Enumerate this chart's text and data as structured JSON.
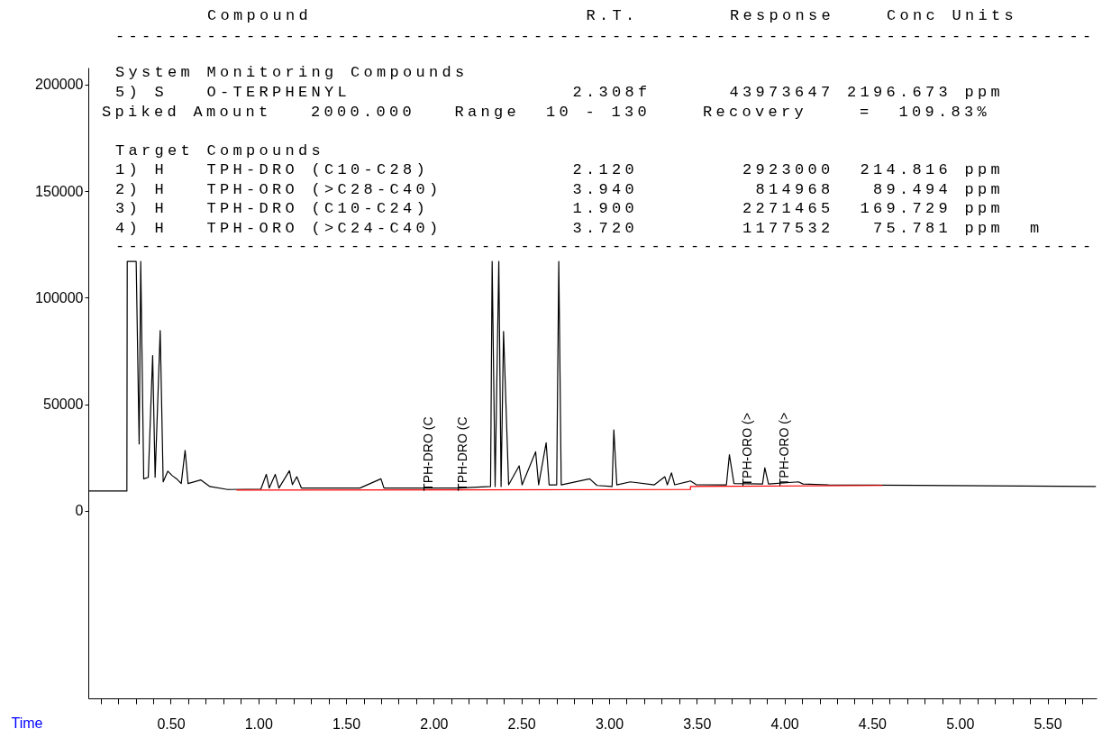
{
  "chart_data": {
    "type": "line",
    "xlabel": "Time",
    "xlim": [
      0.03,
      5.78
    ],
    "xticks": [
      {
        "value": 0.1,
        "label": null
      },
      {
        "value": 0.2,
        "label": null
      },
      {
        "value": 0.3,
        "label": null
      },
      {
        "value": 0.4,
        "label": null
      },
      {
        "value": 0.5,
        "label": "0.50"
      },
      {
        "value": 0.6,
        "label": null
      },
      {
        "value": 0.7,
        "label": null
      },
      {
        "value": 0.8,
        "label": null
      },
      {
        "value": 0.9,
        "label": null
      },
      {
        "value": 1,
        "label": "1.00"
      },
      {
        "value": 1.1,
        "label": null
      },
      {
        "value": 1.2,
        "label": null
      },
      {
        "value": 1.3,
        "label": null
      },
      {
        "value": 1.4,
        "label": null
      },
      {
        "value": 1.5,
        "label": "1.50"
      },
      {
        "value": 1.6,
        "label": null
      },
      {
        "value": 1.7,
        "label": null
      },
      {
        "value": 1.8,
        "label": null
      },
      {
        "value": 1.9,
        "label": null
      },
      {
        "value": 2,
        "label": "2.00"
      },
      {
        "value": 2.1,
        "label": null
      },
      {
        "value": 2.2,
        "label": null
      },
      {
        "value": 2.3,
        "label": null
      },
      {
        "value": 2.4,
        "label": null
      },
      {
        "value": 2.5,
        "label": "2.50"
      },
      {
        "value": 2.6,
        "label": null
      },
      {
        "value": 2.7,
        "label": null
      },
      {
        "value": 2.8,
        "label": null
      },
      {
        "value": 2.9,
        "label": null
      },
      {
        "value": 3,
        "label": "3.00"
      },
      {
        "value": 3.1,
        "label": null
      },
      {
        "value": 3.2,
        "label": null
      },
      {
        "value": 3.3,
        "label": null
      },
      {
        "value": 3.4,
        "label": null
      },
      {
        "value": 3.5,
        "label": "3.50"
      },
      {
        "value": 3.6,
        "label": null
      },
      {
        "value": 3.7,
        "label": null
      },
      {
        "value": 3.8,
        "label": null
      },
      {
        "value": 3.9,
        "label": null
      },
      {
        "value": 4,
        "label": "4.00"
      },
      {
        "value": 4.1,
        "label": null
      },
      {
        "value": 4.2,
        "label": null
      },
      {
        "value": 4.3,
        "label": null
      },
      {
        "value": 4.4,
        "label": null
      },
      {
        "value": 4.5,
        "label": "4.50"
      },
      {
        "value": 4.6,
        "label": null
      },
      {
        "value": 4.7,
        "label": null
      },
      {
        "value": 4.8,
        "label": null
      },
      {
        "value": 4.9,
        "label": null
      },
      {
        "value": 5,
        "label": "5.00"
      },
      {
        "value": 5.1,
        "label": null
      },
      {
        "value": 5.2,
        "label": null
      },
      {
        "value": 5.3,
        "label": null
      },
      {
        "value": 5.4,
        "label": null
      },
      {
        "value": 5.5,
        "label": "5.50"
      },
      {
        "value": 5.6,
        "label": null
      },
      {
        "value": 5.7,
        "label": null
      }
    ],
    "ylim": [
      -88000,
      208000
    ],
    "yticks": [
      0,
      50000,
      100000,
      150000,
      200000
    ],
    "series": [
      {
        "color": "#000000",
        "x": [
          0.03,
          0.25,
          0.252,
          0.303,
          0.32,
          0.329,
          0.346,
          0.372,
          0.397,
          0.411,
          0.44,
          0.457,
          0.483,
          0.509,
          0.534,
          0.56,
          0.582,
          0.599,
          0.671,
          0.723,
          0.825,
          1.014,
          1.045,
          1.062,
          1.096,
          1.117,
          1.177,
          1.194,
          1.219,
          1.245,
          1.579,
          1.699,
          1.716,
          2.144,
          2.324,
          2.333,
          2.35,
          2.371,
          2.384,
          2.398,
          2.427,
          2.487,
          2.504,
          2.581,
          2.598,
          2.641,
          2.658,
          2.701,
          2.713,
          2.727,
          2.889,
          2.931,
          3.017,
          3.027,
          3.044,
          3.121,
          3.258,
          3.318,
          3.332,
          3.356,
          3.374,
          3.464,
          3.496,
          3.669,
          3.686,
          3.712,
          3.875,
          3.888,
          3.909,
          4.08,
          4.106,
          4.251,
          5.776
        ],
        "values": [
          9300,
          9300,
          117000,
          117000,
          31400,
          117000,
          15000,
          15700,
          72900,
          15700,
          84600,
          13600,
          18600,
          16500,
          15000,
          12800,
          28400,
          12800,
          14500,
          11400,
          10000,
          10200,
          17100,
          10700,
          17100,
          10700,
          18800,
          12300,
          16000,
          10700,
          10700,
          15000,
          10700,
          10700,
          11400,
          117000,
          11400,
          117000,
          11400,
          84200,
          12200,
          21100,
          12200,
          27700,
          12200,
          31900,
          12200,
          12200,
          117000,
          12200,
          15000,
          11900,
          11400,
          38000,
          12200,
          13600,
          12200,
          16000,
          12200,
          17800,
          12200,
          14000,
          12300,
          12200,
          26300,
          12800,
          12600,
          20200,
          12600,
          13600,
          12600,
          12200,
          11400
        ]
      },
      {
        "color": "#ff0000",
        "x": [
          0.875,
          3.464,
          3.464,
          4.56
        ],
        "values": [
          9700,
          10000,
          11400,
          11900
        ]
      }
    ],
    "annotations": [
      "Compound                     R.T.       Response    Conc Units",
      "---------------------------------------------------------------------------",
      "System Monitoring Compounds",
      "5) S   O-TERPHENYL                 2.308f      43973647 2196.673 ppm",
      "Spiked Amount   2000.000   Range  10 - 130    Recovery    =  109.83%",
      "Target Compounds",
      "1) H   TPH-DRO (C10-C28)           2.120        2923000  214.816 ppm",
      "2) H   TPH-ORO (>C28-C40)          3.940         814968   89.494 ppm",
      "3) H   TPH-DRO (C10-C24)           1.900        2271465  169.729 ppm",
      "4) H   TPH-ORO (>C24-C40)          3.720        1177532   75.781 ppm  m",
      "---------------------------------------------------------------------------",
      {
        "text": "TPH-DRO (C",
        "x": 1.97,
        "y": 9300
      },
      {
        "text": "TPH-DRO (C",
        "x": 2.17,
        "y": 9300
      },
      {
        "text": "TPH-ORO (>",
        "x": 3.79,
        "y": 11600
      },
      {
        "text": "TPH-ORO (>",
        "x": 4.0,
        "y": 11700
      }
    ]
  }
}
